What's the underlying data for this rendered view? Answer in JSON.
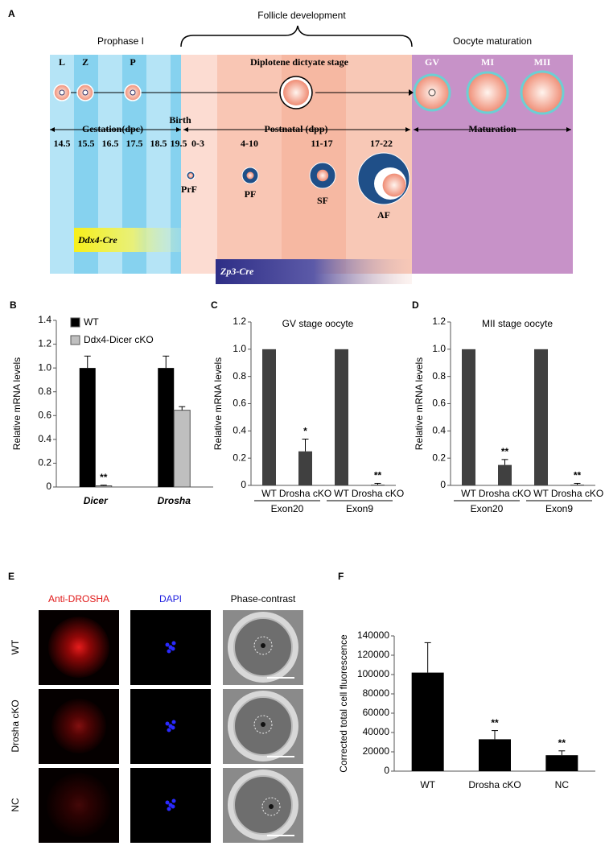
{
  "panel_a": {
    "label": "A",
    "title": "Follicle development",
    "left_phase": "Prophase I",
    "right_phase": "Oocyte maturation",
    "stages": [
      "L",
      "Z",
      "P"
    ],
    "diplotene": "Diplotene dictyate stage",
    "maturation_stages": [
      "GV",
      "MI",
      "MII"
    ],
    "gestation": "Gestation(dpc)",
    "birth": "Birth",
    "postnatal": "Postnatal (dpp)",
    "maturation": "Maturation",
    "gestation_days": [
      "14.5",
      "15.5",
      "16.5",
      "17.5",
      "18.5",
      "19.5"
    ],
    "postnatal_days": [
      "0-3",
      "4-10",
      "11-17",
      "17-22"
    ],
    "follicles": [
      "PrF",
      "PF",
      "SF",
      "AF"
    ],
    "cre_lines": [
      "Ddx4-Cre",
      "Zp3-Cre"
    ]
  },
  "chart_data": [
    {
      "type": "bar",
      "panel_label": "B",
      "y_label": "Relative mRNA levels",
      "categories": [
        "Dicer",
        "Drosha"
      ],
      "series": [
        {
          "name": "WT",
          "color": "#000000",
          "values": [
            1.0,
            1.0
          ],
          "errors": [
            0.1,
            0.1
          ],
          "annotations": [
            null,
            null
          ]
        },
        {
          "name": "Ddx4-Dicer cKO",
          "color": "#bfbfbf",
          "values": [
            0.01,
            0.645
          ],
          "errors": [
            0.005,
            0.03
          ],
          "annotations": [
            "**",
            null
          ]
        }
      ],
      "ylim": [
        0,
        1.4
      ],
      "yticks": [
        0,
        0.2,
        0.4,
        0.6,
        0.8,
        {
          "value": 1,
          "label": "1.0"
        },
        1.2,
        1.4
      ]
    },
    {
      "type": "bar",
      "panel_label": "C",
      "title": "GV stage oocyte",
      "y_label": "Relative mRNA levels",
      "categories": [
        "WT",
        "Drosha cKO",
        "WT",
        "Drosha cKO"
      ],
      "groups": [
        "Exon20",
        "Exon9"
      ],
      "values": [
        1.0,
        0.25,
        1.0,
        0.005
      ],
      "errors": [
        null,
        0.09,
        null,
        0.01
      ],
      "annotations": [
        null,
        "*",
        null,
        "**"
      ],
      "color": "#404040",
      "ylim": [
        0,
        1.2
      ],
      "yticks": [
        0,
        0.2,
        0.4,
        0.6,
        0.8,
        {
          "value": 1,
          "label": "1.0"
        },
        1.2
      ]
    },
    {
      "type": "bar",
      "panel_label": "D",
      "title": "MII stage oocyte",
      "y_label": "Relative mRNA levels",
      "categories": [
        "WT",
        "Drosha cKO",
        "WT",
        "Drosha cKO"
      ],
      "groups": [
        "Exon20",
        "Exon9"
      ],
      "values": [
        1.0,
        0.15,
        1.0,
        0.005
      ],
      "errors": [
        null,
        0.04,
        null,
        0.01
      ],
      "annotations": [
        null,
        "**",
        null,
        "**"
      ],
      "color": "#404040",
      "ylim": [
        0,
        1.2
      ],
      "yticks": [
        0,
        0.2,
        0.4,
        0.6,
        0.8,
        {
          "value": 1,
          "label": "1.0"
        },
        1.2
      ]
    },
    {
      "type": "bar",
      "panel_label": "F",
      "y_label": "Corrected total cell fluorescence",
      "categories": [
        "WT",
        "Drosha cKO",
        "NC"
      ],
      "values": [
        102000,
        33000,
        16500
      ],
      "errors": [
        31000,
        9000,
        4500
      ],
      "annotations": [
        null,
        "**",
        "**"
      ],
      "color": "#000000",
      "ylim": [
        0,
        140000
      ],
      "yticks": [
        0,
        20000,
        40000,
        60000,
        80000,
        100000,
        120000,
        140000
      ]
    }
  ],
  "panel_e": {
    "label": "E",
    "columns": [
      "Anti-DROSHA",
      "DAPI",
      "Phase-contrast"
    ],
    "rows": [
      "WT",
      "Drosha cKO",
      "NC"
    ]
  }
}
